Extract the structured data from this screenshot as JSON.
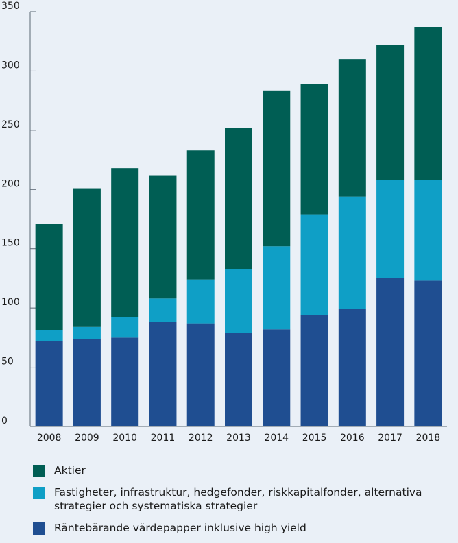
{
  "chart_data": {
    "type": "bar",
    "stacked": true,
    "categories": [
      "2008",
      "2009",
      "2010",
      "2011",
      "2012",
      "2013",
      "2014",
      "2015",
      "2016",
      "2017",
      "2018"
    ],
    "series": [
      {
        "name": "Räntebärande värdepapper inklusive high yield",
        "color": "#1f4e91",
        "values": [
          72,
          74,
          75,
          88,
          87,
          79,
          82,
          94,
          99,
          125,
          123
        ]
      },
      {
        "name": "Fastigheter, infrastruktur, hedgefonder, riskkapitalfonder, alternativa strategier och systematiska strategier",
        "color": "#0f9fc6",
        "values": [
          9,
          10,
          17,
          20,
          37,
          54,
          70,
          85,
          95,
          83,
          85
        ]
      },
      {
        "name": "Aktier",
        "color": "#005e54",
        "values": [
          90,
          117,
          126,
          104,
          109,
          119,
          131,
          110,
          116,
          114,
          129
        ]
      }
    ],
    "yticks": [
      0,
      50,
      100,
      150,
      200,
      250,
      300,
      350
    ],
    "ylim": [
      0,
      350
    ],
    "grid": false,
    "legend_position": "bottom",
    "xlabel": "",
    "ylabel": "",
    "title": ""
  },
  "legend": [
    {
      "label": "Aktier",
      "color": "#005e54"
    },
    {
      "label": "Fastigheter, infrastruktur, hedgefonder, riskkapitalfonder, alternativa strategier och systematiska strategier",
      "color": "#0f9fc6"
    },
    {
      "label": "Räntebärande värdepapper inklusive high yield",
      "color": "#1f4e91"
    }
  ]
}
